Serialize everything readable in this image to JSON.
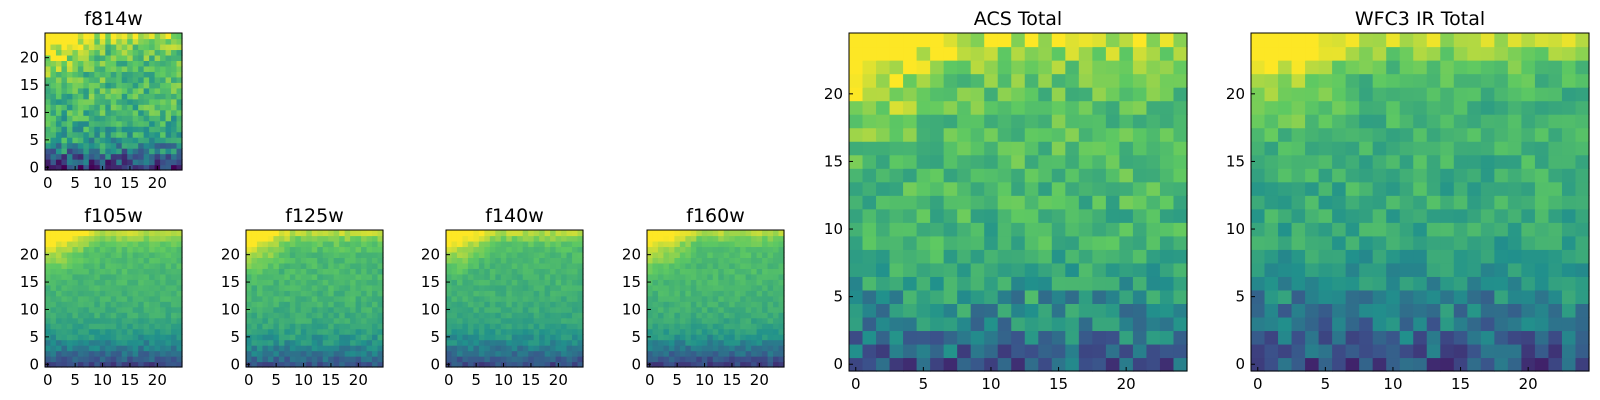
{
  "figure": {
    "colormap": "viridis",
    "colormap_stops": [
      "#440154",
      "#3b528b",
      "#21918c",
      "#5ec962",
      "#fde725"
    ]
  },
  "chart_data": [
    {
      "id": "f814w",
      "type": "heatmap",
      "title": "f814w",
      "grid_size": [
        25,
        25
      ],
      "xticks": [
        0,
        5,
        10,
        15,
        20
      ],
      "yticks": [
        0,
        5,
        10,
        15,
        20
      ],
      "noise": 0.16,
      "bottom_noise": 0.22,
      "seed": 11,
      "values_description_rows_bottom_to_top": [
        0.18,
        0.25,
        0.33,
        0.42,
        0.5,
        0.55,
        0.58,
        0.6,
        0.62,
        0.63,
        0.65,
        0.66,
        0.67,
        0.68,
        0.68,
        0.69,
        0.7,
        0.7,
        0.71,
        0.71,
        0.72,
        0.73,
        0.76,
        0.82,
        0.9
      ]
    },
    {
      "id": "f105w",
      "type": "heatmap",
      "title": "f105w",
      "grid_size": [
        25,
        25
      ],
      "xticks": [
        0,
        5,
        10,
        15,
        20
      ],
      "yticks": [
        0,
        5,
        10,
        15,
        20
      ],
      "noise": 0.05,
      "bottom_noise": 0.08,
      "seed": 23,
      "values_description_rows_bottom_to_top": [
        0.22,
        0.3,
        0.36,
        0.42,
        0.47,
        0.52,
        0.55,
        0.58,
        0.6,
        0.62,
        0.63,
        0.64,
        0.65,
        0.66,
        0.66,
        0.67,
        0.67,
        0.68,
        0.68,
        0.69,
        0.7,
        0.72,
        0.75,
        0.82,
        0.9
      ]
    },
    {
      "id": "f125w",
      "type": "heatmap",
      "title": "f125w",
      "grid_size": [
        25,
        25
      ],
      "xticks": [
        0,
        5,
        10,
        15,
        20
      ],
      "yticks": [
        0,
        5,
        10,
        15,
        20
      ],
      "noise": 0.06,
      "bottom_noise": 0.09,
      "seed": 37,
      "values_description_rows_bottom_to_top": [
        0.28,
        0.34,
        0.4,
        0.45,
        0.5,
        0.54,
        0.57,
        0.59,
        0.61,
        0.62,
        0.63,
        0.64,
        0.65,
        0.65,
        0.66,
        0.66,
        0.67,
        0.67,
        0.68,
        0.68,
        0.69,
        0.71,
        0.74,
        0.8,
        0.88
      ]
    },
    {
      "id": "f140w",
      "type": "heatmap",
      "title": "f140w",
      "grid_size": [
        25,
        25
      ],
      "xticks": [
        0,
        5,
        10,
        15,
        20
      ],
      "yticks": [
        0,
        5,
        10,
        15,
        20
      ],
      "noise": 0.05,
      "bottom_noise": 0.08,
      "seed": 41,
      "values_description_rows_bottom_to_top": [
        0.24,
        0.3,
        0.36,
        0.42,
        0.47,
        0.51,
        0.54,
        0.57,
        0.59,
        0.6,
        0.61,
        0.62,
        0.63,
        0.64,
        0.64,
        0.65,
        0.65,
        0.66,
        0.66,
        0.67,
        0.68,
        0.7,
        0.73,
        0.8,
        0.88
      ]
    },
    {
      "id": "f160w",
      "type": "heatmap",
      "title": "f160w",
      "grid_size": [
        25,
        25
      ],
      "xticks": [
        0,
        5,
        10,
        15,
        20
      ],
      "yticks": [
        0,
        5,
        10,
        15,
        20
      ],
      "noise": 0.05,
      "bottom_noise": 0.08,
      "seed": 53,
      "values_description_rows_bottom_to_top": [
        0.22,
        0.28,
        0.34,
        0.4,
        0.46,
        0.51,
        0.55,
        0.58,
        0.6,
        0.62,
        0.63,
        0.64,
        0.65,
        0.66,
        0.66,
        0.67,
        0.67,
        0.68,
        0.68,
        0.69,
        0.7,
        0.71,
        0.74,
        0.8,
        0.88
      ]
    },
    {
      "id": "acs-total",
      "type": "heatmap",
      "title": "ACS Total",
      "grid_size": [
        25,
        25
      ],
      "xticks": [
        0,
        5,
        10,
        15,
        20
      ],
      "yticks": [
        0,
        5,
        10,
        15,
        20
      ],
      "noise": 0.12,
      "bottom_noise": 0.18,
      "seed": 67,
      "values_description_rows_bottom_to_top": [
        0.3,
        0.36,
        0.4,
        0.44,
        0.48,
        0.52,
        0.56,
        0.6,
        0.62,
        0.64,
        0.65,
        0.66,
        0.67,
        0.68,
        0.69,
        0.7,
        0.7,
        0.71,
        0.71,
        0.72,
        0.72,
        0.74,
        0.78,
        0.84,
        0.92
      ]
    },
    {
      "id": "wfc3-ir-total",
      "type": "heatmap",
      "title": "WFC3 IR Total",
      "grid_size": [
        25,
        25
      ],
      "xticks": [
        0,
        5,
        10,
        15,
        20
      ],
      "yticks": [
        0,
        5,
        10,
        15,
        20
      ],
      "noise": 0.1,
      "bottom_noise": 0.16,
      "seed": 79,
      "values_description_rows_bottom_to_top": [
        0.26,
        0.3,
        0.34,
        0.38,
        0.42,
        0.46,
        0.5,
        0.53,
        0.56,
        0.58,
        0.6,
        0.61,
        0.62,
        0.62,
        0.63,
        0.63,
        0.64,
        0.64,
        0.65,
        0.65,
        0.66,
        0.68,
        0.72,
        0.8,
        0.9
      ]
    }
  ]
}
